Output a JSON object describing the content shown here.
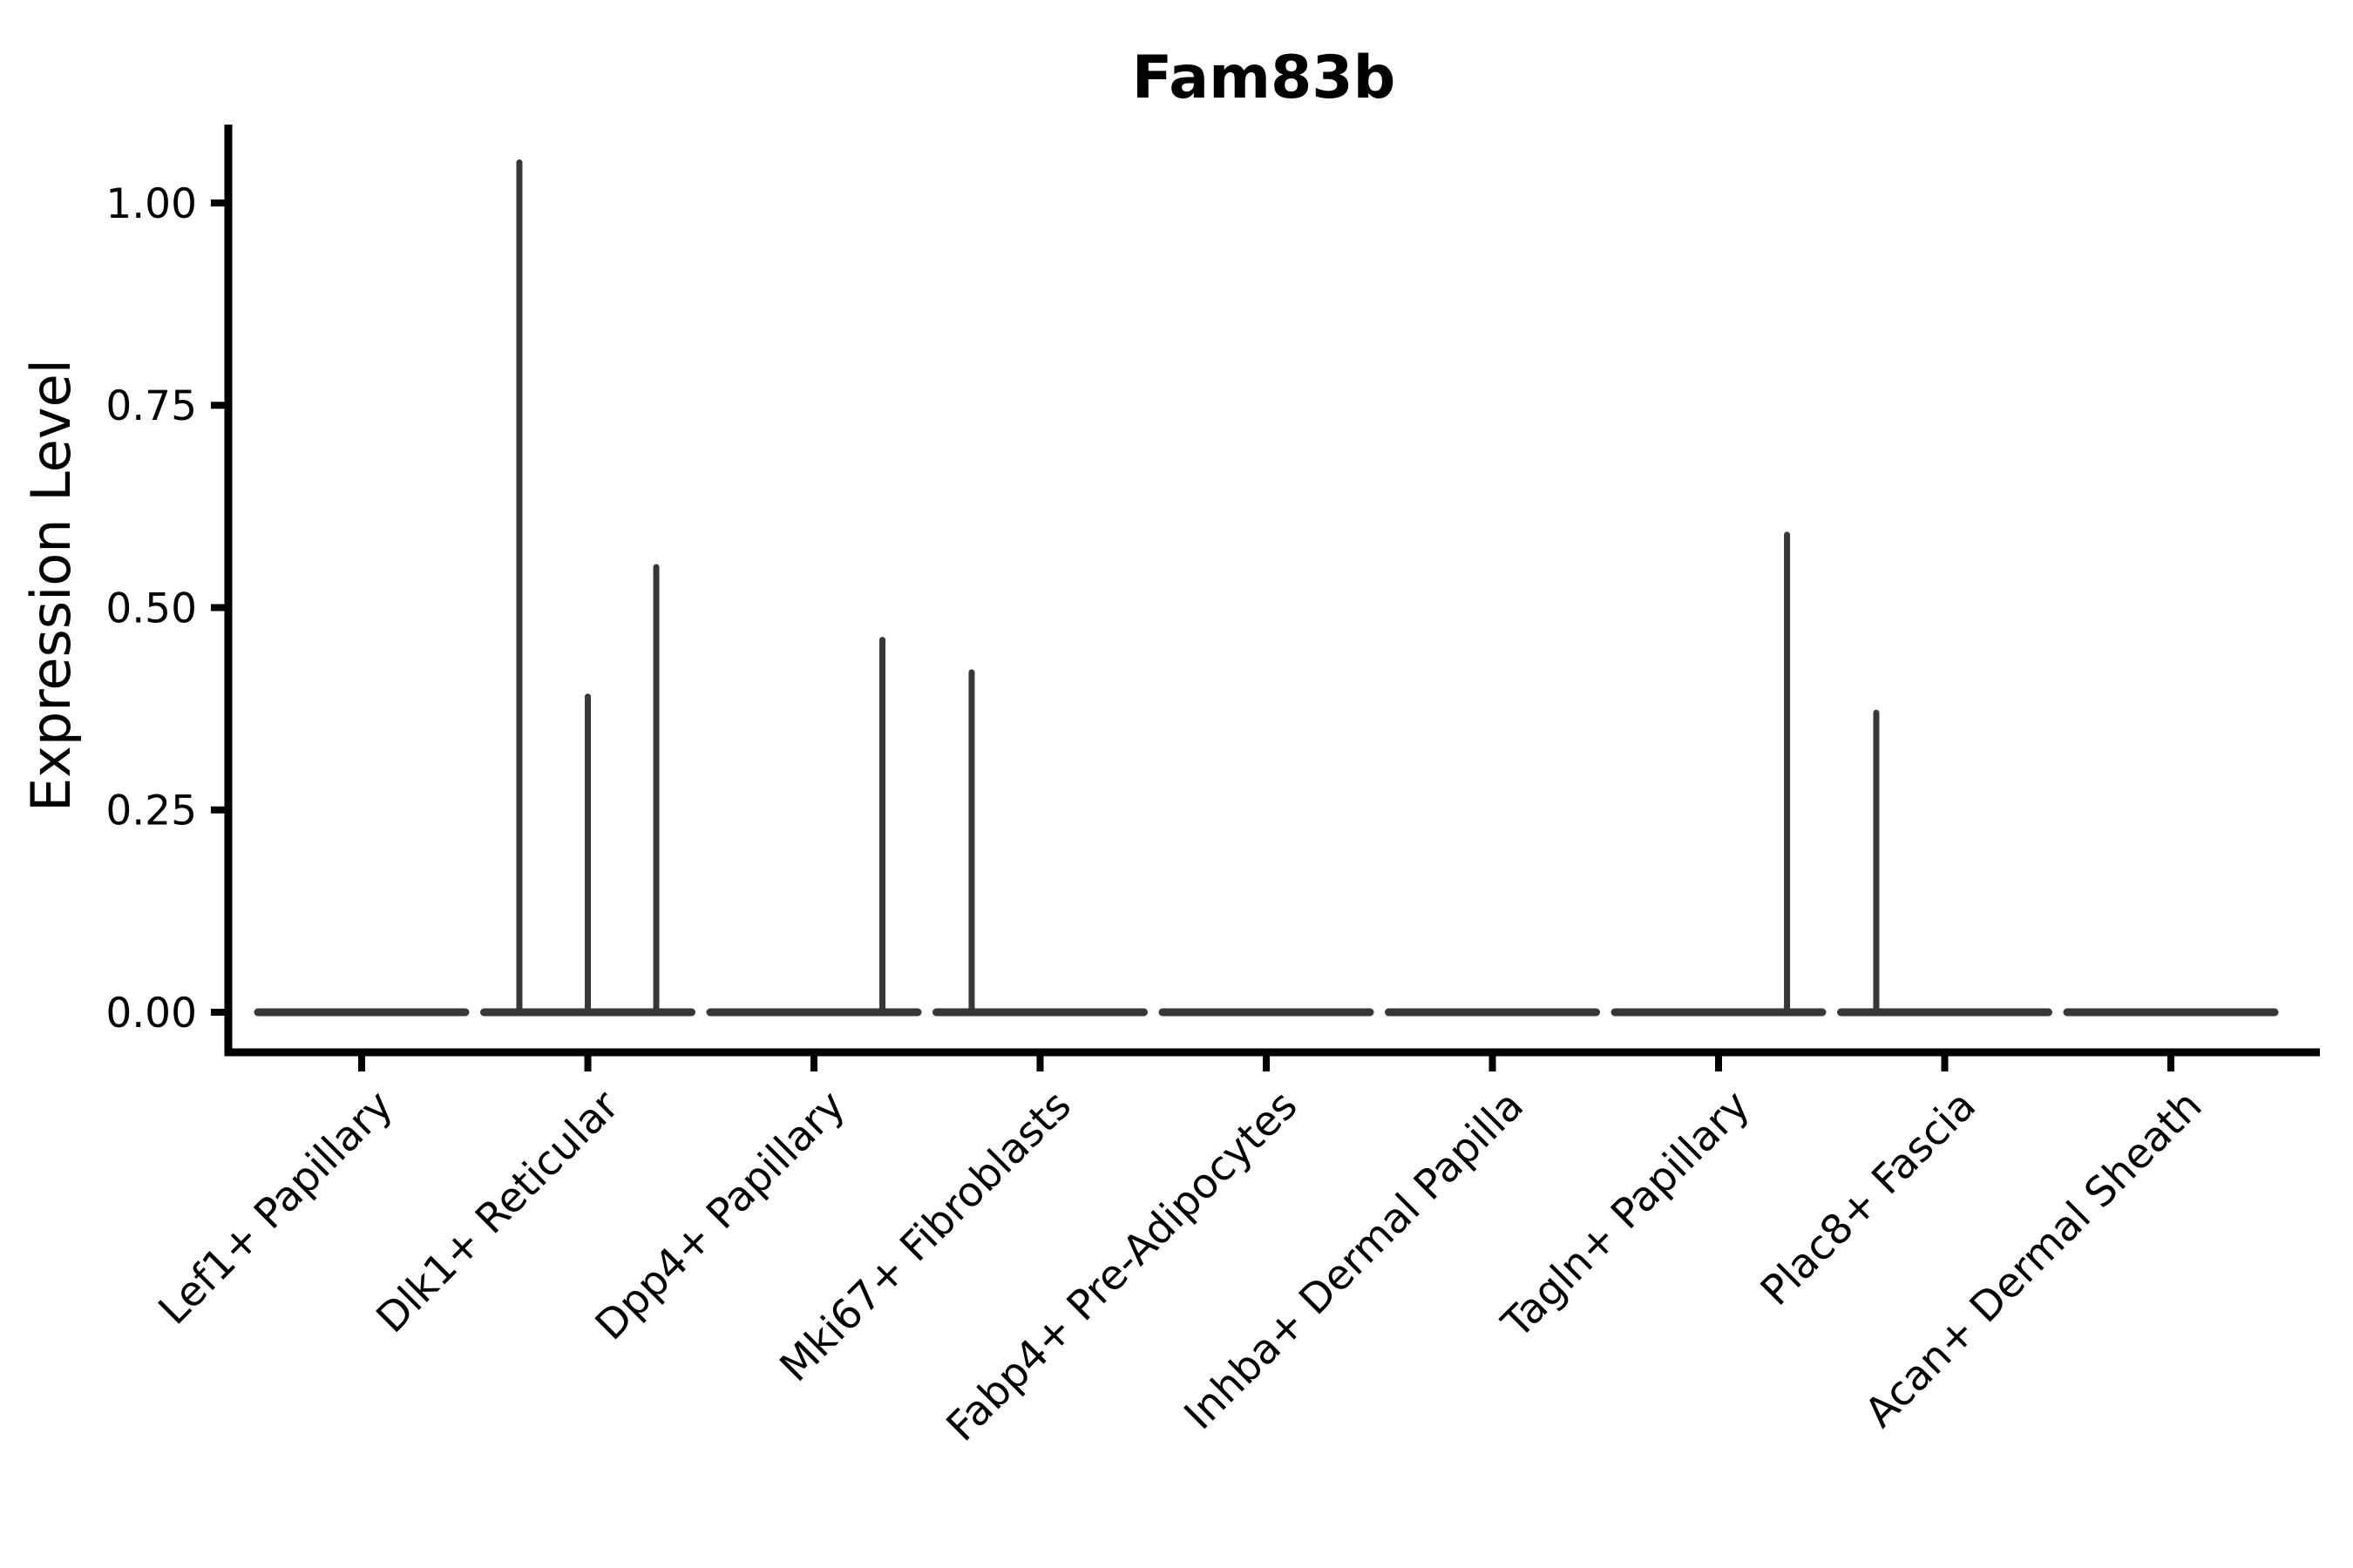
{
  "title": "Fam83b",
  "y_axis": {
    "label": "Expression Level",
    "tick_labels": [
      "0.00",
      "0.25",
      "0.50",
      "0.75",
      "1.00"
    ],
    "tick_values": [
      0,
      0.25,
      0.5,
      0.75,
      1.0
    ]
  },
  "colors": {
    "violin_line": "#373737",
    "axis": "#000000",
    "text": "#000000",
    "background": "#ffffff"
  },
  "chart_data": {
    "type": "violin",
    "title": "Fam83b",
    "xlabel": "",
    "ylabel": "Expression Level",
    "ylim": [
      -0.05,
      1.09
    ],
    "yticks": [
      0,
      0.25,
      0.5,
      0.75,
      1.0
    ],
    "ytick_labels": [
      "0.00",
      "0.25",
      "0.50",
      "0.75",
      "1.00"
    ],
    "grid": false,
    "legend": false,
    "x_tick_rotation_deg": 45,
    "violin_style": "flat baseline at 0 with thin vertical density spikes",
    "categories": [
      "Lef1+ Papillary",
      "Dlk1+ Reticular",
      "Dpp4+ Papillary",
      "Mki67+ Fibroblasts",
      "Fabp4+ Pre-Adipocytes",
      "Inhba+ Dermal Papilla",
      "Tagln+ Papillary",
      "Plac8+ Fascia",
      "Acan+ Dermal Sheath"
    ],
    "series": [
      {
        "name": "Lef1+ Papillary",
        "baseline": 0,
        "spikes": []
      },
      {
        "name": "Dlk1+ Reticular",
        "baseline": 0,
        "spikes": [
          {
            "offset_frac": -0.66,
            "value": 1.05
          },
          {
            "offset_frac": 0.0,
            "value": 0.39
          },
          {
            "offset_frac": 0.66,
            "value": 0.55
          }
        ]
      },
      {
        "name": "Dpp4+ Papillary",
        "baseline": 0,
        "spikes": [
          {
            "offset_frac": 0.66,
            "value": 0.46
          }
        ]
      },
      {
        "name": "Mki67+ Fibroblasts",
        "baseline": 0,
        "spikes": [
          {
            "offset_frac": -0.66,
            "value": 0.42
          }
        ]
      },
      {
        "name": "Fabp4+ Pre-Adipocytes",
        "baseline": 0,
        "spikes": []
      },
      {
        "name": "Inhba+ Dermal Papilla",
        "baseline": 0,
        "spikes": []
      },
      {
        "name": "Tagln+ Papillary",
        "baseline": 0,
        "spikes": [
          {
            "offset_frac": 0.66,
            "value": 0.59
          }
        ]
      },
      {
        "name": "Plac8+ Fascia",
        "baseline": 0,
        "spikes": [
          {
            "offset_frac": -0.66,
            "value": 0.37
          }
        ]
      },
      {
        "name": "Acan+ Dermal Sheath",
        "baseline": 0,
        "spikes": []
      }
    ]
  }
}
